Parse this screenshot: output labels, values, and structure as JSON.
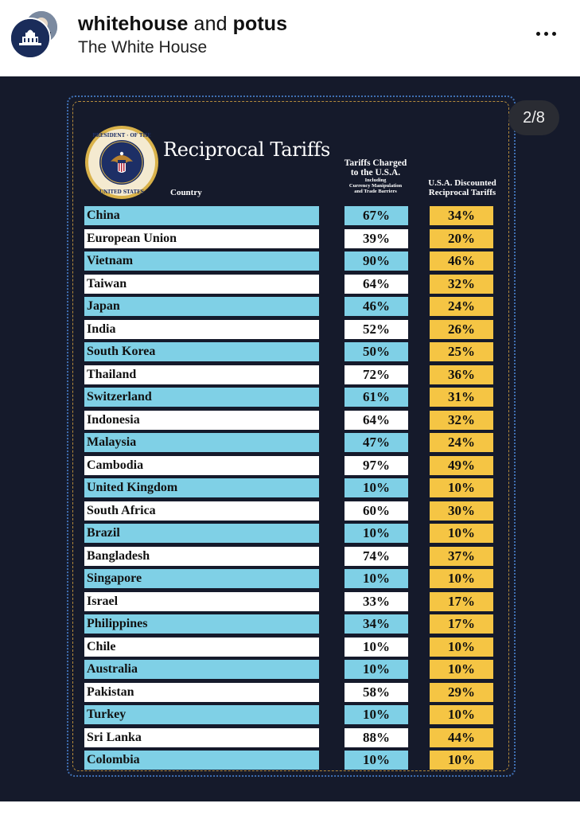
{
  "header": {
    "account_primary": "whitehouse",
    "joiner": " and ",
    "account_secondary": "potus",
    "subtitle": "The White House"
  },
  "pager": "2/8",
  "graphic": {
    "title": "Reciprocal Tariffs",
    "seal_text": "SEAL OF THE PRESIDENT OF THE UNITED STATES",
    "col_country": "Country",
    "col_charged_line1": "Tariffs Charged",
    "col_charged_line2": "to the U.S.A.",
    "col_charged_sub1": "Including",
    "col_charged_sub2": "Currency Manipulation",
    "col_charged_sub3": "and Trade Barriers",
    "col_discount_line1": "U.S.A. Discounted",
    "col_discount_line2": "Reciprocal Tariffs"
  },
  "colors": {
    "background": "#151a2b",
    "row_blue": "#7fd0e6",
    "row_white": "#ffffff",
    "discount_yellow": "#f5c544"
  },
  "rows": [
    {
      "country": "China",
      "charged": "67%",
      "discounted": "34%"
    },
    {
      "country": "European Union",
      "charged": "39%",
      "discounted": "20%"
    },
    {
      "country": "Vietnam",
      "charged": "90%",
      "discounted": "46%"
    },
    {
      "country": "Taiwan",
      "charged": "64%",
      "discounted": "32%"
    },
    {
      "country": "Japan",
      "charged": "46%",
      "discounted": "24%"
    },
    {
      "country": "India",
      "charged": "52%",
      "discounted": "26%"
    },
    {
      "country": "South Korea",
      "charged": "50%",
      "discounted": "25%"
    },
    {
      "country": "Thailand",
      "charged": "72%",
      "discounted": "36%"
    },
    {
      "country": "Switzerland",
      "charged": "61%",
      "discounted": "31%"
    },
    {
      "country": "Indonesia",
      "charged": "64%",
      "discounted": "32%"
    },
    {
      "country": "Malaysia",
      "charged": "47%",
      "discounted": "24%"
    },
    {
      "country": "Cambodia",
      "charged": "97%",
      "discounted": "49%"
    },
    {
      "country": "United Kingdom",
      "charged": "10%",
      "discounted": "10%"
    },
    {
      "country": "South Africa",
      "charged": "60%",
      "discounted": "30%"
    },
    {
      "country": "Brazil",
      "charged": "10%",
      "discounted": "10%"
    },
    {
      "country": "Bangladesh",
      "charged": "74%",
      "discounted": "37%"
    },
    {
      "country": "Singapore",
      "charged": "10%",
      "discounted": "10%"
    },
    {
      "country": "Israel",
      "charged": "33%",
      "discounted": "17%"
    },
    {
      "country": "Philippines",
      "charged": "34%",
      "discounted": "17%"
    },
    {
      "country": "Chile",
      "charged": "10%",
      "discounted": "10%"
    },
    {
      "country": "Australia",
      "charged": "10%",
      "discounted": "10%"
    },
    {
      "country": "Pakistan",
      "charged": "58%",
      "discounted": "29%"
    },
    {
      "country": "Turkey",
      "charged": "10%",
      "discounted": "10%"
    },
    {
      "country": "Sri Lanka",
      "charged": "88%",
      "discounted": "44%"
    },
    {
      "country": "Colombia",
      "charged": "10%",
      "discounted": "10%"
    }
  ]
}
